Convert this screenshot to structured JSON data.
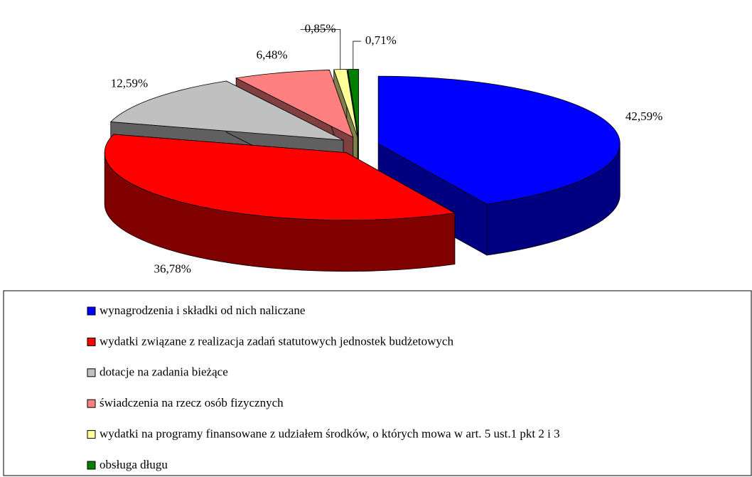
{
  "chart_data": {
    "type": "pie3d",
    "categories": [
      "wynagrodzenia i składki od nich naliczane",
      "wydatki związane z realizacja zadań statutowych jednostek budżetowych",
      "dotacje na zadania bieżące",
      "świadczenia na rzecz osób fizycznych",
      "wydatki na programy finansowane z udziałem środków, o których mowa w art. 5 ust.1 pkt 2 i 3",
      "obsługa długu"
    ],
    "values": [
      42.59,
      36.78,
      12.59,
      6.48,
      0.85,
      0.71
    ],
    "value_labels": [
      "42,59%",
      "36,78%",
      "12,59%",
      "6,48%",
      "0,85%",
      "0,71%"
    ],
    "colors": [
      "#0000ff",
      "#ff0000",
      "#c0c0c0",
      "#ff8080",
      "#ffff99",
      "#008000"
    ],
    "legend": "bottom"
  }
}
